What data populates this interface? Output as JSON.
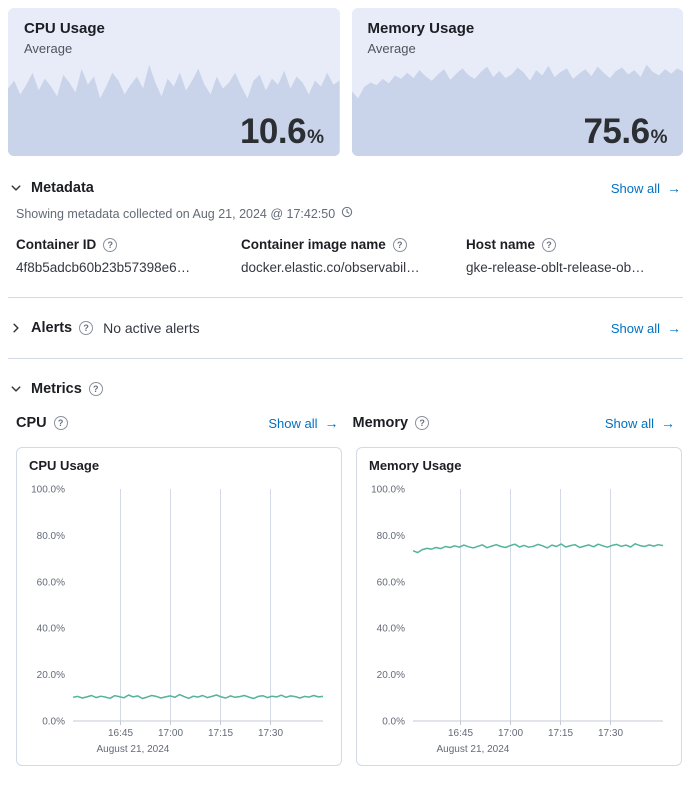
{
  "colors": {
    "link": "#0071c2",
    "card_bg": "#e7ecf8",
    "card_area": "#c9d3e9",
    "line": "#54b399",
    "gridline": "#d3dae6",
    "axis": "#c4cad4",
    "subdued": "#646a77",
    "text": "#343741",
    "heading": "#1d1e23"
  },
  "icons": {
    "help": "?",
    "arrow_right": "→"
  },
  "kpi_cards": [
    {
      "title": "CPU Usage",
      "subtitle": "Average",
      "value": "10.6",
      "unit": "%"
    },
    {
      "title": "Memory Usage",
      "subtitle": "Average",
      "value": "75.6",
      "unit": "%"
    }
  ],
  "metadata": {
    "title": "Metadata",
    "show_all": "Show all",
    "collected_text": "Showing metadata collected on Aug 21, 2024 @ 17:42:50",
    "fields": [
      {
        "label": "Container ID",
        "value": "4f8b5adcb60b23b57398e6…"
      },
      {
        "label": "Container image name",
        "value": "docker.elastic.co/observabil…"
      },
      {
        "label": "Host name",
        "value": "gke-release-oblt-release-ob…"
      }
    ]
  },
  "alerts": {
    "title": "Alerts",
    "status": "No active alerts",
    "show_all": "Show all"
  },
  "metrics": {
    "title": "Metrics",
    "subsections": [
      {
        "label": "CPU",
        "show_all": "Show all"
      },
      {
        "label": "Memory",
        "show_all": "Show all"
      }
    ]
  },
  "chart_data": [
    {
      "type": "line",
      "title": "CPU Usage",
      "x_label": "August 21, 2024",
      "x_ticks": [
        "16:45",
        "17:00",
        "17:15",
        "17:30"
      ],
      "y_ticks": [
        "0.0%",
        "20.0%",
        "40.0%",
        "60.0%",
        "80.0%",
        "100.0%"
      ],
      "ylim": [
        0,
        100
      ],
      "legend": false,
      "grid": "vertical",
      "color": "#54b399",
      "series": [
        {
          "name": "CPU Usage",
          "values": [
            10.2,
            10.6,
            9.9,
            10.4,
            11.0,
            10.1,
            10.7,
            10.3,
            9.8,
            10.9,
            10.5,
            10.0,
            11.2,
            10.4,
            10.8,
            9.7,
            10.3,
            11.0,
            10.6,
            9.9,
            10.4,
            10.8,
            10.2,
            11.4,
            10.5,
            9.8,
            10.7,
            10.3,
            11.0,
            10.1,
            10.6,
            11.2,
            10.4,
            9.9,
            10.8,
            10.2,
            10.5,
            11.0,
            10.3,
            9.7,
            10.6,
            10.9,
            10.1,
            10.7,
            10.4,
            11.1,
            10.2,
            10.8,
            10.5,
            9.9,
            10.6,
            10.3,
            11.0,
            10.4,
            10.6
          ]
        }
      ]
    },
    {
      "type": "line",
      "title": "Memory Usage",
      "x_label": "August 21, 2024",
      "x_ticks": [
        "16:45",
        "17:00",
        "17:15",
        "17:30"
      ],
      "y_ticks": [
        "0.0%",
        "20.0%",
        "40.0%",
        "60.0%",
        "80.0%",
        "100.0%"
      ],
      "ylim": [
        0,
        100
      ],
      "legend": false,
      "grid": "vertical",
      "color": "#54b399",
      "series": [
        {
          "name": "Memory Usage",
          "values": [
            73.4,
            72.6,
            73.9,
            74.4,
            74.1,
            74.8,
            74.3,
            75.2,
            74.8,
            75.5,
            74.9,
            75.8,
            75.1,
            74.6,
            75.3,
            75.9,
            74.7,
            75.4,
            76.0,
            75.2,
            74.8,
            75.6,
            76.2,
            75.0,
            75.7,
            74.9,
            75.3,
            76.1,
            75.5,
            74.6,
            75.8,
            75.2,
            76.3,
            75.0,
            75.6,
            76.0,
            74.8,
            75.4,
            75.9,
            75.1,
            76.2,
            75.5,
            74.9,
            75.7,
            76.1,
            75.3,
            75.8,
            75.0,
            76.4,
            75.6,
            75.2,
            75.9,
            75.4,
            76.0,
            75.6
          ]
        }
      ]
    }
  ]
}
